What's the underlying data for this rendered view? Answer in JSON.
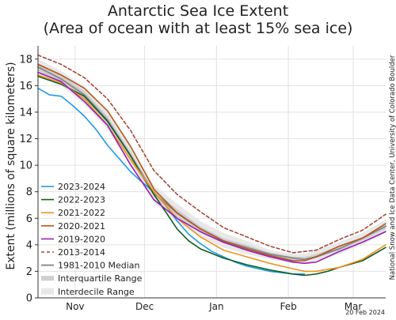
{
  "chart_data": {
    "type": "line",
    "title": "Antarctic Sea Ice Extent",
    "subtitle": "(Area of ocean with at least 15% sea ice)",
    "ylabel": "Extent (millions of square kilometers)",
    "xlabel": "",
    "ylim": [
      0,
      19
    ],
    "yticks": [
      0,
      2,
      4,
      6,
      8,
      10,
      12,
      14,
      16,
      18
    ],
    "xlim": [
      0,
      150
    ],
    "xticks": [
      {
        "label": "Nov",
        "x": 16
      },
      {
        "label": "Dec",
        "x": 46
      },
      {
        "label": "Jan",
        "x": 77
      },
      {
        "label": "Feb",
        "x": 108
      },
      {
        "label": "Mar",
        "x": 136
      }
    ],
    "grid": true,
    "legend_position": "bottom-left",
    "credit": "National Snow and Ice Data Center, University of Colorado Boulder",
    "date_stamp": "20 Feb 2024",
    "colors": {
      "median": "#8c8c8c",
      "interquartile": "#cfcfcf",
      "interdecile": "#e8e8e8"
    },
    "bands": {
      "x": [
        0,
        10,
        20,
        30,
        40,
        50,
        60,
        70,
        80,
        90,
        100,
        110,
        115,
        120,
        130,
        140,
        150
      ],
      "interquartile_low": [
        17.1,
        16.2,
        14.9,
        13.0,
        10.3,
        7.6,
        6.1,
        4.9,
        4.1,
        3.6,
        3.1,
        2.8,
        2.8,
        3.0,
        3.6,
        4.3,
        5.2
      ],
      "interquartile_high": [
        17.7,
        16.8,
        15.6,
        13.7,
        11.0,
        8.1,
        6.7,
        5.4,
        4.5,
        4.0,
        3.4,
        3.1,
        3.1,
        3.3,
        3.9,
        4.6,
        5.6
      ],
      "interdecile_low": [
        16.9,
        16.0,
        14.6,
        12.7,
        10.0,
        7.2,
        5.7,
        4.6,
        3.8,
        3.3,
        2.9,
        2.6,
        2.6,
        2.8,
        3.3,
        4.0,
        4.9
      ],
      "interdecile_high": [
        18.0,
        17.1,
        15.9,
        14.1,
        11.4,
        8.5,
        7.1,
        5.8,
        4.9,
        4.3,
        3.6,
        3.3,
        3.3,
        3.6,
        4.2,
        4.9,
        5.9
      ]
    },
    "series": [
      {
        "name": "2023-2024",
        "color": "#1e9be8",
        "dash": false,
        "x": [
          0,
          5,
          10,
          15,
          20,
          25,
          30,
          35,
          40,
          45,
          50,
          55,
          60,
          65,
          70,
          75,
          80,
          85,
          90,
          95,
          100,
          105,
          110,
          115
        ],
        "y": [
          15.8,
          15.3,
          15.2,
          14.5,
          13.7,
          12.7,
          11.5,
          10.5,
          9.5,
          8.7,
          8.0,
          7.0,
          5.8,
          4.8,
          4.1,
          3.5,
          3.1,
          2.7,
          2.4,
          2.2,
          2.0,
          1.9,
          1.8,
          1.8
        ]
      },
      {
        "name": "2022-2023",
        "color": "#0f5e23",
        "dash": false,
        "x": [
          0,
          10,
          20,
          30,
          40,
          45,
          50,
          55,
          60,
          65,
          70,
          80,
          90,
          100,
          110,
          115,
          120,
          125,
          130,
          140,
          150
        ],
        "y": [
          16.7,
          16.1,
          15.2,
          13.3,
          10.7,
          9.2,
          7.8,
          6.5,
          5.2,
          4.3,
          3.7,
          3.0,
          2.5,
          2.1,
          1.8,
          1.7,
          1.8,
          2.0,
          2.3,
          2.8,
          3.8
        ]
      },
      {
        "name": "2021-2022",
        "color": "#f0931e",
        "dash": false,
        "x": [
          0,
          10,
          20,
          30,
          40,
          50,
          60,
          70,
          80,
          90,
          100,
          110,
          115,
          120,
          130,
          140,
          150
        ],
        "y": [
          16.8,
          16.2,
          15.0,
          13.0,
          10.4,
          8.0,
          6.0,
          4.6,
          3.6,
          3.1,
          2.6,
          2.2,
          2.0,
          2.0,
          2.3,
          2.9,
          4.0
        ]
      },
      {
        "name": "2020-2021",
        "color": "#b5561b",
        "dash": false,
        "x": [
          0,
          10,
          20,
          30,
          40,
          50,
          60,
          70,
          80,
          90,
          100,
          110,
          115,
          120,
          130,
          140,
          150
        ],
        "y": [
          17.6,
          16.8,
          15.8,
          14.1,
          11.4,
          8.2,
          6.4,
          5.2,
          4.3,
          3.7,
          3.2,
          2.8,
          2.8,
          3.1,
          3.9,
          4.5,
          5.6
        ]
      },
      {
        "name": "2019-2020",
        "color": "#9b1fb3",
        "dash": false,
        "x": [
          0,
          10,
          20,
          30,
          40,
          50,
          60,
          70,
          80,
          90,
          100,
          110,
          115,
          120,
          125,
          130,
          140,
          150
        ],
        "y": [
          17.0,
          16.3,
          14.8,
          13.0,
          10.0,
          7.4,
          6.0,
          5.0,
          4.2,
          3.6,
          3.1,
          2.7,
          2.6,
          2.7,
          3.1,
          3.5,
          4.2,
          5.0
        ]
      },
      {
        "name": "2013-2014",
        "color": "#a5483a",
        "dash": true,
        "x": [
          0,
          10,
          20,
          30,
          40,
          50,
          60,
          70,
          80,
          90,
          100,
          110,
          120,
          130,
          140,
          150
        ],
        "y": [
          18.3,
          17.6,
          16.6,
          15.0,
          12.6,
          9.6,
          7.8,
          6.5,
          5.3,
          4.6,
          3.9,
          3.4,
          3.6,
          4.4,
          5.1,
          6.3
        ]
      },
      {
        "name": "1981-2010 Median",
        "color": "#8c8c8c",
        "dash": false,
        "x": [
          0,
          10,
          20,
          30,
          40,
          50,
          60,
          70,
          80,
          90,
          100,
          110,
          115,
          120,
          130,
          140,
          150
        ],
        "y": [
          17.4,
          16.5,
          15.3,
          13.4,
          10.7,
          7.9,
          6.4,
          5.2,
          4.3,
          3.8,
          3.3,
          3.0,
          2.9,
          3.1,
          3.7,
          4.5,
          5.4
        ]
      }
    ],
    "legend_extra": [
      "Interquartile Range",
      "Interdecile Range"
    ]
  }
}
